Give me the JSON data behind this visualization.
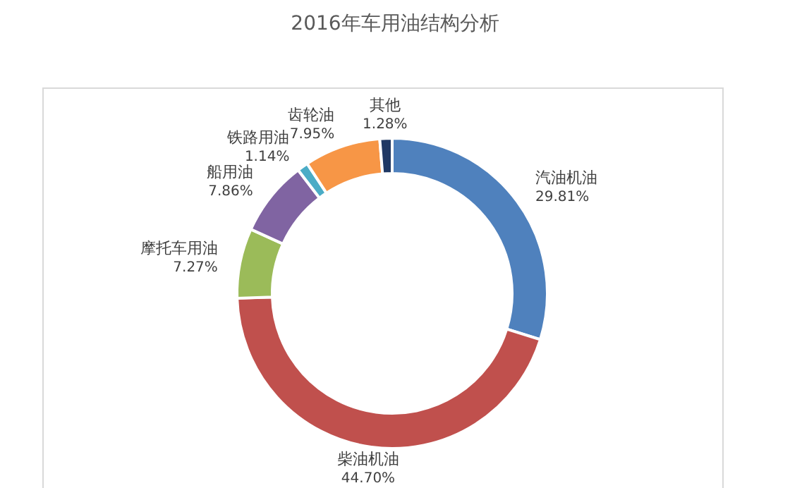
{
  "chart_data": {
    "type": "donut",
    "title": "2016年车用油结构分析",
    "categories": [
      "汽油机油",
      "柴油机油",
      "摩托车用油",
      "船用油",
      "铁路用油",
      "齿轮油",
      "其他"
    ],
    "values": [
      29.81,
      44.7,
      7.27,
      7.86,
      1.14,
      7.95,
      1.28
    ],
    "value_labels": [
      "29.81%",
      "44.70%",
      "7.27%",
      "7.86%",
      "1.14%",
      "7.95%",
      "1.28%"
    ],
    "colors": [
      "#4f81bd",
      "#c0504d",
      "#9bbb59",
      "#8064a2",
      "#4bacc6",
      "#f79646",
      "#1f3864"
    ],
    "legend": false
  }
}
